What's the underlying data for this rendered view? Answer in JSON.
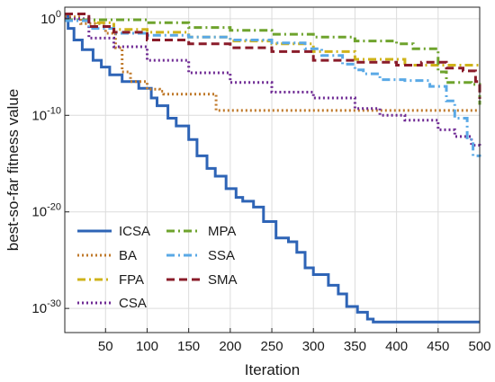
{
  "chart_data": {
    "type": "line",
    "xlabel": "Iteration",
    "ylabel": "best-so-far fitness value",
    "xlim": [
      1,
      500
    ],
    "ylim_log10": [
      -32.5,
      1.2
    ],
    "y_scale": "log",
    "grid": true,
    "x_ticks": [
      50,
      100,
      150,
      200,
      250,
      300,
      350,
      400,
      450,
      500
    ],
    "x_tick_labels": [
      "50",
      "100",
      "150",
      "200",
      "250",
      "300",
      "350",
      "400",
      "450",
      "500"
    ],
    "y_ticks_log10": [
      0,
      -10,
      -20,
      -30
    ],
    "y_tick_labels": [
      {
        "base": "10",
        "exp": "0"
      },
      {
        "base": "10",
        "exp": "-10"
      },
      {
        "base": "10",
        "exp": "-20"
      },
      {
        "base": "10",
        "exp": "-30"
      }
    ],
    "legend_position": "bottom-left",
    "series": [
      {
        "name": "ICSA",
        "color": "#2e64b6",
        "dash": "solid",
        "width": 3,
        "points": [
          [
            1,
            0.3
          ],
          [
            5,
            -1
          ],
          [
            12,
            -2.2
          ],
          [
            22,
            -3.2
          ],
          [
            35,
            -4.3
          ],
          [
            45,
            -5
          ],
          [
            55,
            -5.8
          ],
          [
            70,
            -6.5
          ],
          [
            90,
            -7.2
          ],
          [
            105,
            -8.2
          ],
          [
            112,
            -9
          ],
          [
            125,
            -10.3
          ],
          [
            135,
            -11.1
          ],
          [
            150,
            -12.5
          ],
          [
            160,
            -14.2
          ],
          [
            172,
            -15.5
          ],
          [
            182,
            -16.3
          ],
          [
            195,
            -17.6
          ],
          [
            207,
            -18.5
          ],
          [
            215,
            -18.9
          ],
          [
            228,
            -19.5
          ],
          [
            240,
            -21
          ],
          [
            255,
            -22.7
          ],
          [
            270,
            -23.1
          ],
          [
            280,
            -24.2
          ],
          [
            290,
            -25.8
          ],
          [
            300,
            -26.5
          ],
          [
            318,
            -27.6
          ],
          [
            330,
            -28.5
          ],
          [
            340,
            -29.8
          ],
          [
            353,
            -30.4
          ],
          [
            365,
            -31.1
          ],
          [
            372,
            -31.4
          ],
          [
            500,
            -31.4
          ]
        ]
      },
      {
        "name": "BA",
        "color": "#c07a2b",
        "dash": "dot",
        "width": 3,
        "points": [
          [
            1,
            0.2
          ],
          [
            20,
            -0.5
          ],
          [
            50,
            -1.5
          ],
          [
            62,
            -3
          ],
          [
            70,
            -5.5
          ],
          [
            80,
            -6.5
          ],
          [
            100,
            -7.3
          ],
          [
            115,
            -7.5
          ],
          [
            120,
            -7.8
          ],
          [
            180,
            -7.8
          ],
          [
            183,
            -9.5
          ],
          [
            500,
            -9.5
          ]
        ]
      },
      {
        "name": "FPA",
        "color": "#cfb31a",
        "dash": "dashdot",
        "width": 3,
        "points": [
          [
            1,
            -0.2
          ],
          [
            40,
            -0.4
          ],
          [
            60,
            -1.1
          ],
          [
            100,
            -1.4
          ],
          [
            150,
            -1.9
          ],
          [
            200,
            -2.3
          ],
          [
            250,
            -2.6
          ],
          [
            300,
            -3.4
          ],
          [
            350,
            -4.2
          ],
          [
            410,
            -4.8
          ],
          [
            500,
            -4.8
          ]
        ]
      },
      {
        "name": "CSA",
        "color": "#6f2a94",
        "dash": "dot",
        "width": 3,
        "points": [
          [
            1,
            0
          ],
          [
            30,
            -2
          ],
          [
            60,
            -2.9
          ],
          [
            100,
            -4.3
          ],
          [
            150,
            -5.6
          ],
          [
            200,
            -6.6
          ],
          [
            250,
            -7.6
          ],
          [
            300,
            -8.2
          ],
          [
            350,
            -9.3
          ],
          [
            380,
            -10
          ],
          [
            410,
            -10.5
          ],
          [
            450,
            -11.5
          ],
          [
            470,
            -12.2
          ],
          [
            490,
            -13.1
          ],
          [
            500,
            -13.2
          ]
        ]
      },
      {
        "name": "MPA",
        "color": "#6ea32d",
        "dash": "dashdot",
        "width": 3,
        "points": [
          [
            1,
            -0.1
          ],
          [
            25,
            -0.1
          ],
          [
            100,
            -0.4
          ],
          [
            150,
            -0.9
          ],
          [
            200,
            -1.2
          ],
          [
            250,
            -1.6
          ],
          [
            300,
            -1.9
          ],
          [
            350,
            -2.3
          ],
          [
            400,
            -2.6
          ],
          [
            420,
            -3.1
          ],
          [
            450,
            -5.5
          ],
          [
            460,
            -6.6
          ],
          [
            490,
            -6.8
          ],
          [
            500,
            -8.9
          ]
        ]
      },
      {
        "name": "SSA",
        "color": "#5aa9e6",
        "dash": "dashdot",
        "width": 3,
        "points": [
          [
            1,
            -0.2
          ],
          [
            30,
            -1
          ],
          [
            60,
            -1.5
          ],
          [
            100,
            -1.7
          ],
          [
            150,
            -1.9
          ],
          [
            200,
            -2.2
          ],
          [
            250,
            -2.5
          ],
          [
            290,
            -3.1
          ],
          [
            310,
            -3.8
          ],
          [
            335,
            -4.7
          ],
          [
            350,
            -5.3
          ],
          [
            360,
            -5.7
          ],
          [
            380,
            -6.3
          ],
          [
            410,
            -6.4
          ],
          [
            440,
            -7
          ],
          [
            460,
            -8.5
          ],
          [
            470,
            -10.3
          ],
          [
            485,
            -12.5
          ],
          [
            492,
            -14.2
          ],
          [
            500,
            -14.3
          ]
        ]
      },
      {
        "name": "SMA",
        "color": "#8a1c2a",
        "dash": "dash",
        "width": 3,
        "points": [
          [
            1,
            0.5
          ],
          [
            30,
            -0.8
          ],
          [
            60,
            -1.4
          ],
          [
            100,
            -2.2
          ],
          [
            150,
            -2.6
          ],
          [
            200,
            -3
          ],
          [
            250,
            -3.4
          ],
          [
            300,
            -4.3
          ],
          [
            350,
            -4.5
          ],
          [
            400,
            -4.8
          ],
          [
            430,
            -4.5
          ],
          [
            460,
            -5.1
          ],
          [
            480,
            -5.4
          ],
          [
            495,
            -6.5
          ],
          [
            500,
            -8.3
          ]
        ]
      }
    ]
  }
}
